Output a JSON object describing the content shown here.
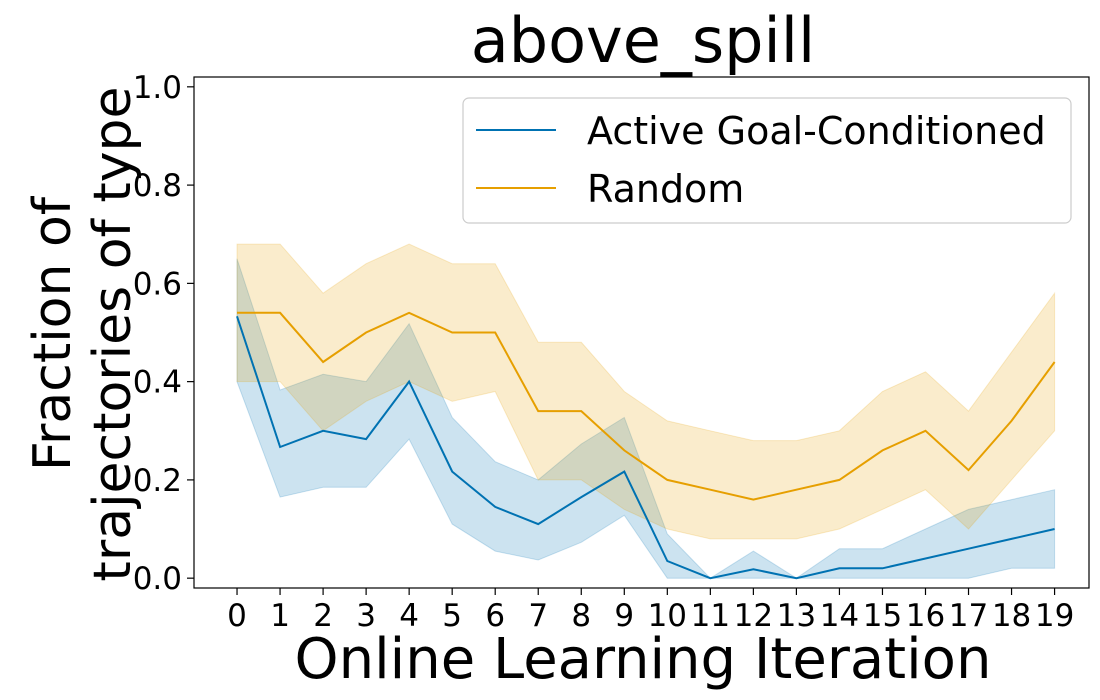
{
  "chart_data": {
    "type": "line",
    "title": "above_spill",
    "xlabel": "Online Learning Iteration",
    "ylabel_lines": [
      "Fraction of",
      "trajectories of type"
    ],
    "x": [
      0,
      1,
      2,
      3,
      4,
      5,
      6,
      7,
      8,
      9,
      10,
      11,
      12,
      13,
      14,
      15,
      16,
      17,
      18,
      19
    ],
    "xtick_labels": [
      "0",
      "1",
      "2",
      "3",
      "4",
      "5",
      "6",
      "7",
      "8",
      "9",
      "10",
      "11",
      "12",
      "13",
      "14",
      "15",
      "16",
      "17",
      "18",
      "19"
    ],
    "yticks": [
      0.0,
      0.2,
      0.4,
      0.6,
      0.8,
      1.0
    ],
    "ytick_labels": [
      "0.0",
      "0.2",
      "0.4",
      "0.6",
      "0.8",
      "1.0"
    ],
    "xlim": [
      -1,
      19.8
    ],
    "ylim": [
      -0.02,
      1.02
    ],
    "grid": false,
    "legend_position": "upper-right",
    "series": [
      {
        "name": "Active Goal-Conditioned",
        "color": "#0072b2",
        "band_opacity": 0.2,
        "values": [
          0.533,
          0.267,
          0.3,
          0.283,
          0.4,
          0.217,
          0.145,
          0.11,
          0.165,
          0.217,
          0.035,
          0.0,
          0.018,
          0.0,
          0.02,
          0.02,
          0.04,
          0.06,
          0.08,
          0.1
        ],
        "lower": [
          0.4,
          0.165,
          0.185,
          0.185,
          0.283,
          0.11,
          0.055,
          0.037,
          0.073,
          0.128,
          0.0,
          0.0,
          0.0,
          0.0,
          0.0,
          0.0,
          0.0,
          0.0,
          0.02,
          0.02
        ],
        "upper": [
          0.65,
          0.383,
          0.415,
          0.4,
          0.518,
          0.327,
          0.237,
          0.2,
          0.273,
          0.327,
          0.09,
          0.0,
          0.055,
          0.0,
          0.06,
          0.06,
          0.1,
          0.14,
          0.16,
          0.18
        ]
      },
      {
        "name": "Random",
        "color": "#e69f00",
        "band_opacity": 0.2,
        "values": [
          0.54,
          0.54,
          0.44,
          0.5,
          0.54,
          0.5,
          0.5,
          0.34,
          0.34,
          0.26,
          0.2,
          0.18,
          0.16,
          0.18,
          0.2,
          0.26,
          0.3,
          0.22,
          0.32,
          0.44
        ],
        "lower": [
          0.4,
          0.4,
          0.3,
          0.36,
          0.4,
          0.36,
          0.38,
          0.2,
          0.2,
          0.14,
          0.1,
          0.08,
          0.08,
          0.08,
          0.1,
          0.14,
          0.18,
          0.1,
          0.2,
          0.3
        ],
        "upper": [
          0.68,
          0.68,
          0.58,
          0.64,
          0.68,
          0.64,
          0.64,
          0.48,
          0.48,
          0.38,
          0.32,
          0.3,
          0.28,
          0.28,
          0.3,
          0.38,
          0.42,
          0.34,
          0.46,
          0.58
        ]
      }
    ]
  }
}
